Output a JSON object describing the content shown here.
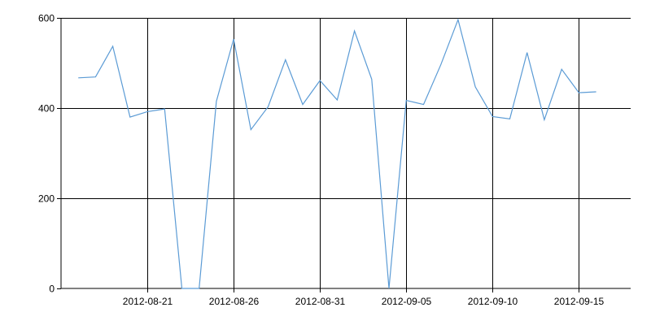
{
  "chart_data": {
    "type": "line",
    "title": "",
    "xlabel": "",
    "ylabel": "",
    "ylim": [
      0,
      600
    ],
    "xlim": [
      "2012-08-16",
      "2012-09-18"
    ],
    "grid": true,
    "legend": "none",
    "y_ticks": [
      {
        "value": 0,
        "label": "0"
      },
      {
        "value": 200,
        "label": "200"
      },
      {
        "value": 400,
        "label": "400"
      },
      {
        "value": 600,
        "label": "600"
      }
    ],
    "x_ticks": [
      {
        "value": "2012-08-21",
        "label": "2012-08-21"
      },
      {
        "value": "2012-08-26",
        "label": "2012-08-26"
      },
      {
        "value": "2012-08-31",
        "label": "2012-08-31"
      },
      {
        "value": "2012-09-05",
        "label": "2012-09-05"
      },
      {
        "value": "2012-09-10",
        "label": "2012-09-10"
      },
      {
        "value": "2012-09-15",
        "label": "2012-09-15"
      }
    ],
    "series": [
      {
        "color": "#5b9bd5",
        "points": [
          {
            "x": "2012-08-17",
            "y": 467
          },
          {
            "x": "2012-08-18",
            "y": 469
          },
          {
            "x": "2012-08-19",
            "y": 537
          },
          {
            "x": "2012-08-20",
            "y": 380
          },
          {
            "x": "2012-08-21",
            "y": 392
          },
          {
            "x": "2012-08-22",
            "y": 398
          },
          {
            "x": "2012-08-23",
            "y": 0
          },
          {
            "x": "2012-08-24",
            "y": 0
          },
          {
            "x": "2012-08-25",
            "y": 415
          },
          {
            "x": "2012-08-26",
            "y": 553
          },
          {
            "x": "2012-08-27",
            "y": 352
          },
          {
            "x": "2012-08-28",
            "y": 403
          },
          {
            "x": "2012-08-29",
            "y": 507
          },
          {
            "x": "2012-08-30",
            "y": 408
          },
          {
            "x": "2012-08-31",
            "y": 461
          },
          {
            "x": "2012-09-01",
            "y": 418
          },
          {
            "x": "2012-09-02",
            "y": 571
          },
          {
            "x": "2012-09-03",
            "y": 464
          },
          {
            "x": "2012-09-04",
            "y": 0
          },
          {
            "x": "2012-09-05",
            "y": 417
          },
          {
            "x": "2012-09-06",
            "y": 408
          },
          {
            "x": "2012-09-07",
            "y": 496
          },
          {
            "x": "2012-09-08",
            "y": 596
          },
          {
            "x": "2012-09-09",
            "y": 447
          },
          {
            "x": "2012-09-10",
            "y": 381
          },
          {
            "x": "2012-09-11",
            "y": 376
          },
          {
            "x": "2012-09-12",
            "y": 523
          },
          {
            "x": "2012-09-13",
            "y": 374
          },
          {
            "x": "2012-09-14",
            "y": 486
          },
          {
            "x": "2012-09-15",
            "y": 434
          },
          {
            "x": "2012-09-16",
            "y": 436
          }
        ]
      }
    ]
  }
}
